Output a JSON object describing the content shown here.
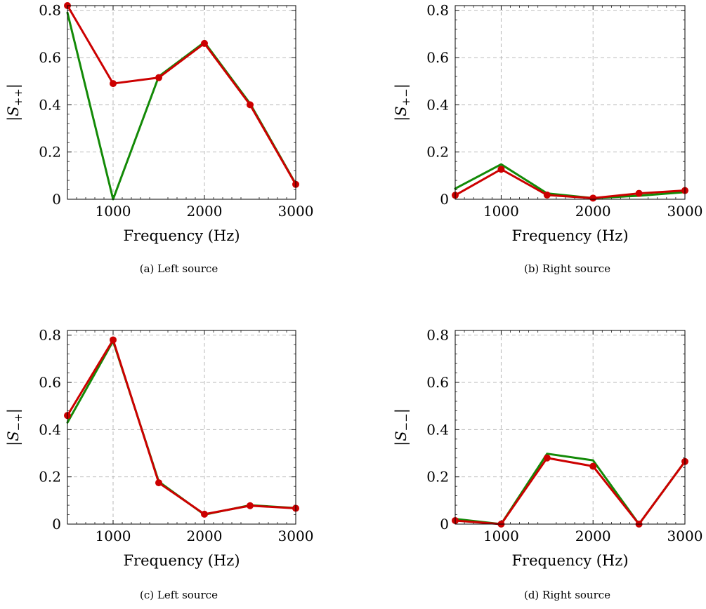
{
  "colors": {
    "red_series": "#cc0000",
    "green_series": "#138a07",
    "grid": "#b3b3b3"
  },
  "chart_data": [
    {
      "type": "line",
      "caption": "(a) Left source",
      "xlabel": "Frequency (Hz)",
      "ylabel_main": "|S",
      "ylabel_sub": "++",
      "ylabel_end": "|",
      "xlim": [
        500,
        3000
      ],
      "ylim": [
        0,
        0.82
      ],
      "xticks": [
        1000,
        2000,
        3000
      ],
      "xtick_labels": [
        "1000",
        "2000",
        "3000"
      ],
      "yticks": [
        0,
        0.2,
        0.4,
        0.6,
        0.8
      ],
      "ytick_labels": [
        "0",
        "0.2",
        "0.4",
        "0.6",
        "0.8"
      ],
      "grid": true,
      "x": [
        500,
        1000,
        1500,
        2000,
        2500,
        3000
      ],
      "series": [
        {
          "color": "#138a07",
          "marker": "none",
          "values": [
            0.79,
            0.0,
            0.52,
            0.665,
            0.405,
            0.065
          ]
        },
        {
          "color": "#cc0000",
          "marker": "circle",
          "values": [
            0.82,
            0.49,
            0.515,
            0.66,
            0.4,
            0.063
          ]
        }
      ]
    },
    {
      "type": "line",
      "caption": "(b) Right source",
      "xlabel": "Frequency (Hz)",
      "ylabel_main": "|S",
      "ylabel_sub": "+−",
      "ylabel_end": "|",
      "xlim": [
        500,
        3000
      ],
      "ylim": [
        0,
        0.82
      ],
      "xticks": [
        1000,
        2000,
        3000
      ],
      "xtick_labels": [
        "1000",
        "2000",
        "3000"
      ],
      "yticks": [
        0,
        0.2,
        0.4,
        0.6,
        0.8
      ],
      "ytick_labels": [
        "0",
        "0.2",
        "0.4",
        "0.6",
        "0.8"
      ],
      "grid": true,
      "x": [
        500,
        1000,
        1500,
        2000,
        2500,
        3000
      ],
      "series": [
        {
          "color": "#138a07",
          "marker": "none",
          "values": [
            0.045,
            0.148,
            0.025,
            0.005,
            0.015,
            0.03
          ]
        },
        {
          "color": "#cc0000",
          "marker": "circle",
          "values": [
            0.017,
            0.127,
            0.018,
            0.005,
            0.025,
            0.037
          ]
        }
      ]
    },
    {
      "type": "line",
      "caption": "(c) Left source",
      "xlabel": "Frequency (Hz)",
      "ylabel_main": "|S",
      "ylabel_sub": "−+",
      "ylabel_end": "|",
      "xlim": [
        500,
        3000
      ],
      "ylim": [
        0,
        0.82
      ],
      "xticks": [
        1000,
        2000,
        3000
      ],
      "xtick_labels": [
        "1000",
        "2000",
        "3000"
      ],
      "yticks": [
        0,
        0.2,
        0.4,
        0.6,
        0.8
      ],
      "ytick_labels": [
        "0",
        "0.2",
        "0.4",
        "0.6",
        "0.8"
      ],
      "grid": true,
      "x": [
        500,
        1000,
        1500,
        2000,
        2500,
        3000
      ],
      "series": [
        {
          "color": "#138a07",
          "marker": "none",
          "values": [
            0.43,
            0.775,
            0.18,
            0.04,
            0.08,
            0.068
          ]
        },
        {
          "color": "#cc0000",
          "marker": "circle",
          "values": [
            0.46,
            0.78,
            0.175,
            0.042,
            0.078,
            0.067
          ]
        }
      ]
    },
    {
      "type": "line",
      "caption": "(d) Right source",
      "xlabel": "Frequency (Hz)",
      "ylabel_main": "|S",
      "ylabel_sub": "−−",
      "ylabel_end": "|",
      "xlim": [
        500,
        3000
      ],
      "ylim": [
        0,
        0.82
      ],
      "xticks": [
        1000,
        2000,
        3000
      ],
      "xtick_labels": [
        "1000",
        "2000",
        "3000"
      ],
      "yticks": [
        0,
        0.2,
        0.4,
        0.6,
        0.8
      ],
      "ytick_labels": [
        "0",
        "0.2",
        "0.4",
        "0.6",
        "0.8"
      ],
      "grid": true,
      "x": [
        500,
        1000,
        1500,
        2000,
        2500,
        3000
      ],
      "series": [
        {
          "color": "#138a07",
          "marker": "none",
          "values": [
            0.022,
            0.0,
            0.298,
            0.27,
            0.0,
            0.265
          ]
        },
        {
          "color": "#cc0000",
          "marker": "circle",
          "values": [
            0.015,
            0.0,
            0.28,
            0.245,
            0.0,
            0.265
          ]
        }
      ]
    }
  ]
}
